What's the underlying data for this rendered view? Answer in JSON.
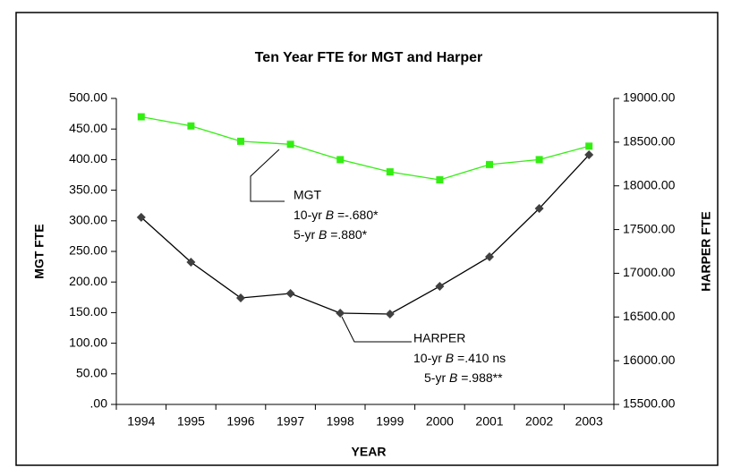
{
  "chart_data": {
    "type": "line",
    "title": "Ten Year FTE for MGT and Harper",
    "x_label": "YEAR",
    "y_label": "MGT FTE",
    "y2_label": "HARPER FTE",
    "categories": [
      "1994",
      "1995",
      "1996",
      "1997",
      "1998",
      "1999",
      "2000",
      "2001",
      "2002",
      "2003"
    ],
    "series": [
      {
        "name": "MGT",
        "color": "#33ee11",
        "marker": "square",
        "values": [
          470,
          455,
          430,
          425,
          400,
          380,
          367,
          392,
          400,
          422
        ]
      },
      {
        "name": "HARPER",
        "color": "#404040",
        "marker": "diamond",
        "axis": "y2",
        "values": [
          17640,
          17127,
          16718,
          16769,
          16544,
          16534,
          16851,
          17189,
          17741,
          18355
        ]
      }
    ],
    "annotations": [
      {
        "title": "MGT",
        "lines": [
          {
            "prefix": "10-yr ",
            "symbol": "B",
            "value": " =-.680*"
          },
          {
            "prefix": "5-yr ",
            "symbol": "B",
            "value": " =.880*"
          }
        ]
      },
      {
        "title": "HARPER",
        "lines": [
          {
            "prefix": "10-yr ",
            "symbol": "B",
            "value": " =.410 ns"
          },
          {
            "prefix": "5-yr ",
            "symbol": "B",
            "value": " =.988**"
          }
        ]
      }
    ],
    "ylim": [
      0,
      500
    ],
    "yticks": [
      {
        "value": 0,
        "label": ".00"
      },
      {
        "value": 50,
        "label": "50.00"
      },
      {
        "value": 100,
        "label": "100.00"
      },
      {
        "value": 150,
        "label": "150.00"
      },
      {
        "value": 200,
        "label": "200.00"
      },
      {
        "value": 250,
        "label": "250.00"
      },
      {
        "value": 300,
        "label": "300.00"
      },
      {
        "value": 350,
        "label": "350.00"
      },
      {
        "value": 400,
        "label": "400.00"
      },
      {
        "value": 450,
        "label": "450.00"
      },
      {
        "value": 500,
        "label": "500.00"
      }
    ],
    "y2lim": [
      15500,
      19000
    ],
    "y2ticks": [
      {
        "value": 15500,
        "label": "15500.00"
      },
      {
        "value": 16000,
        "label": "16000.00"
      },
      {
        "value": 16500,
        "label": "16500.00"
      },
      {
        "value": 17000,
        "label": "17000.00"
      },
      {
        "value": 17500,
        "label": "17500.00"
      },
      {
        "value": 18000,
        "label": "18000.00"
      },
      {
        "value": 18500,
        "label": "18500.00"
      },
      {
        "value": 19000,
        "label": "19000.00"
      }
    ],
    "grid": false
  }
}
